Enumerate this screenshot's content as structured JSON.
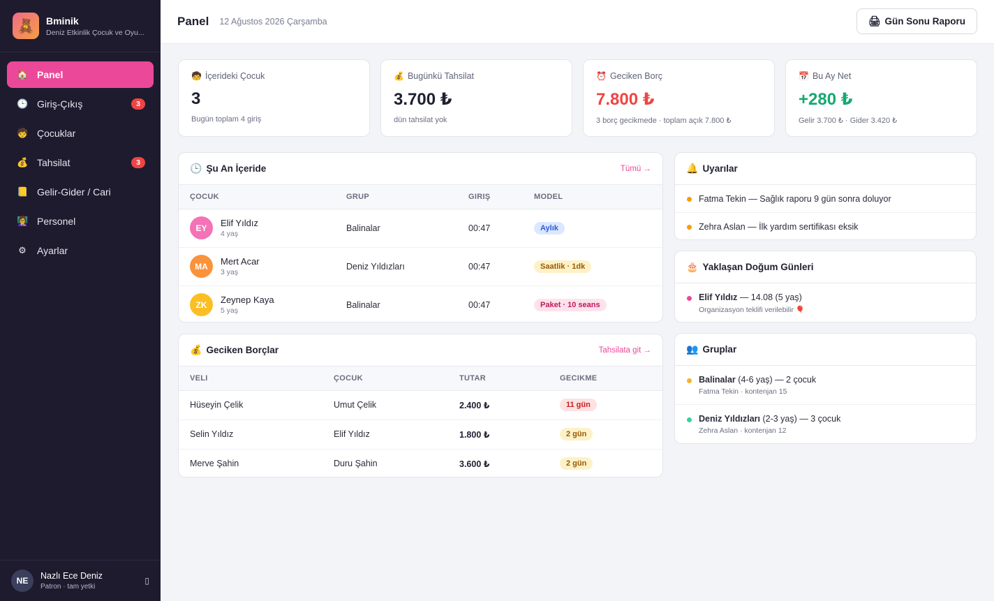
{
  "app": {
    "name": "Bminik",
    "subtitle": "Deniz Etkinlik Çocuk ve Oyu..."
  },
  "sidebar": {
    "items": [
      {
        "label": "Panel",
        "icon": "house-icon",
        "glyph": "🏠",
        "active": true
      },
      {
        "label": "Giriş-Çıkış",
        "icon": "clock-icon",
        "glyph": "🕒",
        "badge": "3"
      },
      {
        "label": "Çocuklar",
        "icon": "child-icon",
        "glyph": "🧒"
      },
      {
        "label": "Tahsilat",
        "icon": "money-bag-icon",
        "glyph": "💰",
        "badge": "3"
      },
      {
        "label": "Gelir-Gider / Cari",
        "icon": "ledger-icon",
        "glyph": "📒"
      },
      {
        "label": "Personel",
        "icon": "staff-icon",
        "glyph": "👩‍🏫"
      },
      {
        "label": "Ayarlar",
        "icon": "gear-icon",
        "glyph": "⚙"
      }
    ],
    "user": {
      "initials": "NE",
      "name": "Nazlı Ece Deniz",
      "role": "Patron · tam yetki"
    }
  },
  "header": {
    "title": "Panel",
    "date": "12 Ağustos 2026 Çarşamba",
    "report_button": "Gün Sonu Raporu"
  },
  "stats": [
    {
      "title": "İçerideki Çocuk",
      "value": "3",
      "sub": "Bugün toplam 4 giriş",
      "icon": "child-icon"
    },
    {
      "title": "Bugünkü Tahsilat",
      "value": "3.700 ₺",
      "sub": "dün tahsilat yok",
      "icon": "money-bag-icon"
    },
    {
      "title": "Geciken Borç",
      "value": "7.800 ₺",
      "sub": "3 borç gecikmede · toplam açık 7.800 ₺",
      "icon": "alarm-clock-icon"
    },
    {
      "title": "Bu Ay Net",
      "value": "+280 ₺",
      "sub": "Gelir 3.700 ₺ · Gider 3.420 ₺",
      "icon": "calendar-icon"
    }
  ],
  "inside": {
    "title": "Şu An İçeride",
    "link": "Tümü →",
    "columns": [
      "Çocuk",
      "Grup",
      "Giriş",
      "Model"
    ],
    "rows": [
      {
        "initials": "EY",
        "name": "Elif Yıldız",
        "age": "4 yaş",
        "group": "Balinalar",
        "time": "00:47",
        "model": "Aylık",
        "avatar_color": "#f472b6",
        "pill_bg": "#dbe8ff",
        "pill_fg": "#2d5bd6"
      },
      {
        "initials": "MA",
        "name": "Mert Acar",
        "age": "3 yaş",
        "group": "Deniz Yıldızları",
        "time": "00:47",
        "model": "Saatlik · 1dk",
        "avatar_color": "#fb923c",
        "pill_bg": "#fdf1c7",
        "pill_fg": "#9a5a06"
      },
      {
        "initials": "ZK",
        "name": "Zeynep Kaya",
        "age": "5 yaş",
        "group": "Balinalar",
        "time": "00:47",
        "model": "Paket · 10 seans",
        "avatar_color": "#fbbf24",
        "pill_bg": "#fde2ec",
        "pill_fg": "#be185d"
      }
    ]
  },
  "debts": {
    "title": "Geciken Borçlar",
    "link": "Tahsilata git →",
    "columns": [
      "Veli",
      "Çocuk",
      "Tutar",
      "Gecikme"
    ],
    "rows": [
      {
        "parent": "Hüseyin Çelik",
        "child": "Umut Çelik",
        "amount": "2.400 ₺",
        "delay": "11 gün",
        "pill_bg": "#fde2e2",
        "pill_fg": "#c81e1e"
      },
      {
        "parent": "Selin Yıldız",
        "child": "Elif Yıldız",
        "amount": "1.800 ₺",
        "delay": "2 gün",
        "pill_bg": "#fdf1c7",
        "pill_fg": "#9a5a06"
      },
      {
        "parent": "Merve Şahin",
        "child": "Duru Şahin",
        "amount": "3.600 ₺",
        "delay": "2 gün",
        "pill_bg": "#fdf1c7",
        "pill_fg": "#9a5a06"
      }
    ]
  },
  "alerts": {
    "title": "Uyarılar",
    "items": [
      {
        "text": "Fatma Tekin — Sağlık raporu 9 gün sonra doluyor",
        "color": "#f59e0b"
      },
      {
        "text": "Zehra Aslan — İlk yardım sertifikası eksik",
        "color": "#f59e0b"
      }
    ]
  },
  "birthdays": {
    "title": "Yaklaşan Doğum Günleri",
    "items": [
      {
        "name": "Elif Yıldız",
        "detail": " — 14.08 (5 yaş)",
        "sub": "Organizasyon teklifi verilebilir 🎈",
        "color": "#ec4899"
      }
    ]
  },
  "groups": {
    "title": "Gruplar",
    "items": [
      {
        "name": "Balinalar",
        "detail": " (4-6 yaş) — 2 çocuk",
        "sub": "Fatma Tekin · kontenjan 15",
        "color": "#f5b324"
      },
      {
        "name": "Deniz Yıldızları",
        "detail": " (2-3 yaş) — 3 çocuk",
        "sub": "Zehra Aslan · kontenjan 12",
        "color": "#34d399"
      }
    ]
  },
  "colors": {
    "accent": "#ec4899",
    "sidebar_bg": "#1f1b2e",
    "danger": "#ef4444",
    "success": "#16a971"
  }
}
